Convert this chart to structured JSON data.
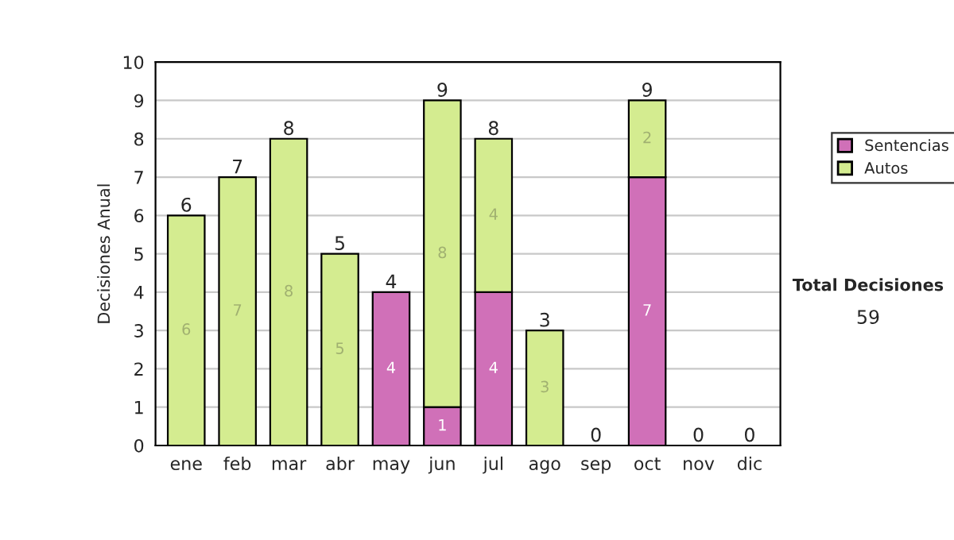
{
  "chart_data": {
    "type": "bar",
    "stacked": true,
    "ylabel": "Decisiones Anual",
    "categories": [
      "ene",
      "feb",
      "mar",
      "abr",
      "may",
      "jun",
      "jul",
      "ago",
      "sep",
      "oct",
      "nov",
      "dic"
    ],
    "series": [
      {
        "name": "Sentencias",
        "color": "#d070b8",
        "values": [
          0,
          0,
          0,
          0,
          4,
          1,
          4,
          0,
          0,
          7,
          0,
          0
        ],
        "value_labels": [
          null,
          null,
          null,
          null,
          "4",
          "1",
          "4",
          null,
          null,
          "7",
          null,
          null
        ]
      },
      {
        "name": "Autos",
        "color": "#d4ec90",
        "values": [
          6,
          7,
          8,
          5,
          0,
          8,
          4,
          3,
          0,
          2,
          0,
          0
        ],
        "value_labels": [
          "6",
          "7",
          "8",
          "5",
          null,
          "8",
          "4",
          "3",
          null,
          "2",
          null,
          null
        ]
      }
    ],
    "totals": [
      "6",
      "7",
      "8",
      "5",
      "4",
      "9",
      "8",
      "3",
      "0",
      "9",
      "0",
      "0"
    ],
    "ylim": [
      0,
      10
    ],
    "yticks": [
      0,
      1,
      2,
      3,
      4,
      5,
      6,
      7,
      8,
      9,
      10
    ],
    "grid": "y",
    "legend": "right",
    "annotations": [
      "Total Decisiones",
      "59"
    ]
  }
}
